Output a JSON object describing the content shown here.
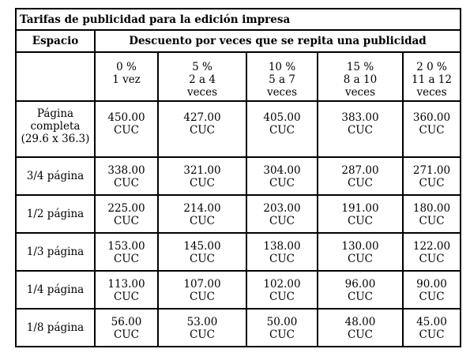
{
  "title": "Tarifas de publicidad para la edición impresa",
  "header": {
    "space_label": "Espacio",
    "discount_label": "Descuento por veces que se repita una publicidad"
  },
  "discounts": [
    {
      "pct": "0 %",
      "times": "1 vez",
      "extra": ""
    },
    {
      "pct": "5 %",
      "times": "2 a 4",
      "extra": "veces"
    },
    {
      "pct": "10 %",
      "times": "5 a 7",
      "extra": "veces"
    },
    {
      "pct": "15 %",
      "times": "8 a 10",
      "extra": "veces"
    },
    {
      "pct": "2 0 %",
      "times": "11 a 12",
      "extra": "veces"
    }
  ],
  "rows": [
    {
      "space": [
        "Página",
        "completa",
        "(29.6 x 36.3)"
      ],
      "prices": [
        "450.00",
        "427.00",
        "405.00",
        "383.00",
        "360.00"
      ],
      "currency": "CUC"
    },
    {
      "space": [
        "3/4 página"
      ],
      "prices": [
        "338.00",
        "321.00",
        "304.00",
        "287.00",
        "271.00"
      ],
      "currency": "CUC"
    },
    {
      "space": [
        "1/2 página"
      ],
      "prices": [
        "225.00",
        "214.00",
        "203.00",
        "191.00",
        "180.00"
      ],
      "currency": "CUC"
    },
    {
      "space": [
        "1/3 página"
      ],
      "prices": [
        "153.00",
        "145.00",
        "138.00",
        "130.00",
        "122.00"
      ],
      "currency": "CUC"
    },
    {
      "space": [
        "1/4 página"
      ],
      "prices": [
        "113.00",
        "107.00",
        "102.00",
        "96.00",
        "90.00"
      ],
      "currency": "CUC"
    },
    {
      "space": [
        "1/8 página"
      ],
      "prices": [
        "56.00",
        "53.00",
        "50.00",
        "48.00",
        "45.00"
      ],
      "currency": "CUC"
    }
  ]
}
